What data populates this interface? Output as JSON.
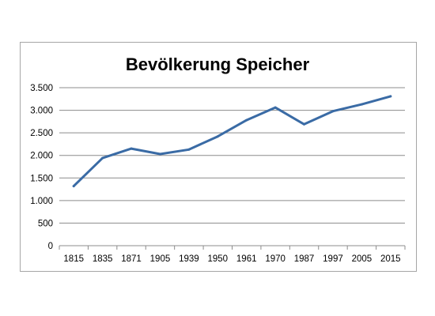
{
  "chart_data": {
    "type": "line",
    "title": "Bevölkerung Speicher",
    "xlabel": "",
    "ylabel": "",
    "categories": [
      "1815",
      "1835",
      "1871",
      "1905",
      "1939",
      "1950",
      "1961",
      "1970",
      "1987",
      "1997",
      "2005",
      "2015"
    ],
    "series": [
      {
        "values": [
          1320,
          1940,
          2150,
          2030,
          2130,
          2420,
          2780,
          3060,
          2690,
          2980,
          3130,
          3310
        ],
        "color": "#3a6ba5"
      }
    ],
    "ylim": [
      0,
      3500
    ],
    "yticks": [
      0,
      500,
      1000,
      1500,
      2000,
      2500,
      3000,
      3500
    ],
    "ytick_labels": [
      "0",
      "500",
      "1.000",
      "1.500",
      "2.000",
      "2.500",
      "3.000",
      "3.500"
    ],
    "grid": true,
    "legend": "none"
  }
}
